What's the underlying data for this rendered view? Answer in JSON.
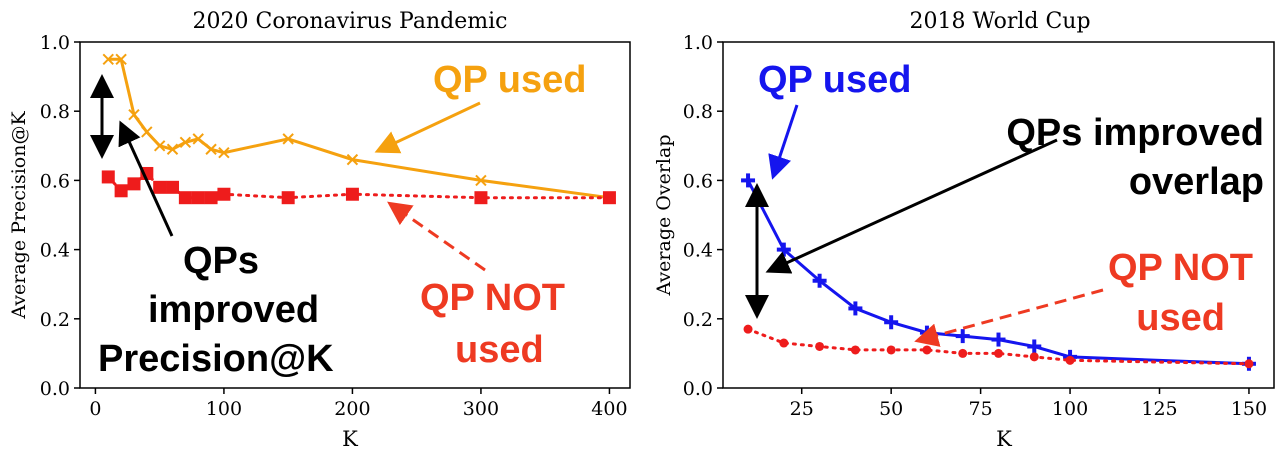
{
  "chart_data": [
    {
      "type": "line",
      "title": "2020 Coronavirus Pandemic",
      "xlabel": "K",
      "ylabel": "Average Precision@K",
      "xlim": [
        -12,
        416
      ],
      "ylim": [
        0.0,
        1.0
      ],
      "xticks": [
        "0",
        "100",
        "200",
        "300",
        "400"
      ],
      "yticks": [
        "0.0",
        "0.2",
        "0.4",
        "0.6",
        "0.8",
        "1.0"
      ],
      "grid": false,
      "series": [
        {
          "color": "#f5a10f",
          "style": "solid",
          "marker": "x",
          "x": [
            10,
            20,
            30,
            40,
            50,
            60,
            70,
            80,
            90,
            100,
            150,
            200,
            300,
            400
          ],
          "y": [
            0.95,
            0.95,
            0.79,
            0.74,
            0.7,
            0.69,
            0.71,
            0.72,
            0.69,
            0.68,
            0.72,
            0.66,
            0.6,
            0.55
          ]
        },
        {
          "color": "#ee1c1c",
          "style": "dotted",
          "marker": "square",
          "x": [
            10,
            20,
            30,
            40,
            50,
            60,
            70,
            80,
            90,
            100,
            150,
            200,
            300,
            400
          ],
          "y": [
            0.61,
            0.57,
            0.59,
            0.62,
            0.58,
            0.58,
            0.55,
            0.55,
            0.55,
            0.56,
            0.55,
            0.56,
            0.55,
            0.55
          ]
        }
      ],
      "annotations": {
        "used": "QP used",
        "not_used_line1": "QP NOT",
        "not_used_line2": "used",
        "improved_line1": "QPs",
        "improved_line2": "improved",
        "improved_line3": "Precision@K"
      }
    },
    {
      "type": "line",
      "title": "2018 World Cup",
      "xlabel": "K",
      "ylabel": "Average Overlap",
      "xlim": [
        3,
        157
      ],
      "ylim": [
        0.0,
        1.0
      ],
      "xticks": [
        "25",
        "50",
        "75",
        "100",
        "125",
        "150"
      ],
      "yticks": [
        "0.0",
        "0.2",
        "0.4",
        "0.6",
        "0.8",
        "1.0"
      ],
      "grid": false,
      "series": [
        {
          "color": "#1515ee",
          "style": "solid",
          "marker": "plus",
          "x": [
            10,
            20,
            30,
            40,
            50,
            60,
            70,
            80,
            90,
            100,
            150
          ],
          "y": [
            0.6,
            0.4,
            0.31,
            0.23,
            0.19,
            0.16,
            0.15,
            0.14,
            0.12,
            0.09,
            0.07
          ]
        },
        {
          "color": "#ee1c1c",
          "style": "dotted",
          "marker": "dot",
          "x": [
            10,
            20,
            30,
            40,
            50,
            60,
            70,
            80,
            90,
            100,
            150
          ],
          "y": [
            0.17,
            0.13,
            0.12,
            0.11,
            0.11,
            0.11,
            0.1,
            0.1,
            0.09,
            0.08,
            0.07
          ]
        }
      ],
      "annotations": {
        "used": "QP used",
        "improved_line1": "QPs improved",
        "improved_line2": "overlap",
        "not_used_line1": "QP NOT",
        "not_used_line2": "used"
      }
    }
  ]
}
